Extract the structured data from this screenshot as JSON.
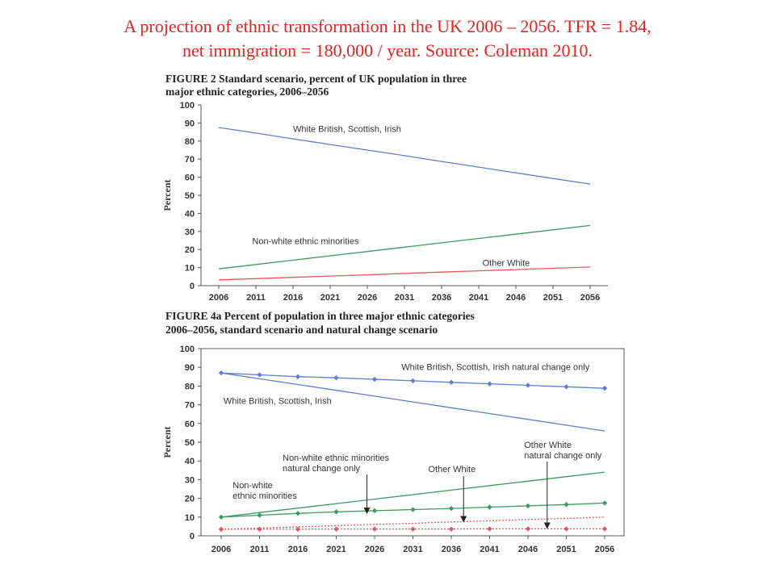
{
  "slide_title": {
    "line1": "A projection of ethnic transformation in the UK 2006 – 2056. TFR = 1.84,",
    "line2": "net immigration = 180,000 / year. Source: Coleman 2010."
  },
  "colors": {
    "title": "#e3231d",
    "white_british": "#5b7fd1",
    "nonwhite": "#3c9a5f",
    "other_white": "#e8575a",
    "axis": "#555555"
  },
  "chart_data": [
    {
      "type": "line",
      "title_line1": "FIGURE 2   Standard scenario, percent of UK population in three",
      "title_line2": "major ethnic categories, 2006–2056",
      "ylabel": "Percent",
      "ylim": [
        0,
        100
      ],
      "yticks": [
        0,
        10,
        20,
        30,
        40,
        50,
        60,
        70,
        80,
        90,
        100
      ],
      "x": [
        2006,
        2011,
        2016,
        2021,
        2026,
        2031,
        2036,
        2041,
        2046,
        2051,
        2056
      ],
      "grid": false,
      "series": [
        {
          "name": "White British, Scottish, Irish",
          "key": "white_british",
          "values": [
            87.5,
            84.4,
            81.2,
            78.1,
            75.0,
            71.9,
            68.7,
            65.6,
            62.4,
            59.3,
            56.2
          ],
          "markers": false,
          "dash": false
        },
        {
          "name": "Non-white ethnic minorities",
          "key": "nonwhite",
          "values": [
            9.3,
            11.7,
            14.1,
            16.5,
            18.9,
            21.3,
            23.7,
            26.1,
            28.5,
            30.9,
            33.3
          ],
          "markers": false,
          "dash": false
        },
        {
          "name": "Other White",
          "key": "other_white",
          "values": [
            3.2,
            3.9,
            4.6,
            5.3,
            6.0,
            6.8,
            7.5,
            8.2,
            8.9,
            9.6,
            10.3
          ],
          "markers": false,
          "dash": false
        }
      ],
      "annotations": [
        {
          "text": "White British, Scottish, Irish",
          "x": 2016.0,
          "y": 85.0,
          "arrow": false
        },
        {
          "text": "Non-white ethnic minorities",
          "x": 2010.5,
          "y": 23.0,
          "arrow": false
        },
        {
          "text": "Other White",
          "x": 2041.5,
          "y": 11.0,
          "arrow": false
        }
      ]
    },
    {
      "type": "line",
      "title_line1": "FIGURE 4a   Percent of population in three major ethnic categories",
      "title_line2": "2006–2056, standard scenario and natural change scenario",
      "ylabel": "Percent",
      "ylim": [
        0,
        100
      ],
      "yticks": [
        0,
        10,
        20,
        30,
        40,
        50,
        60,
        70,
        80,
        90,
        100
      ],
      "x": [
        2006,
        2011,
        2016,
        2021,
        2026,
        2031,
        2036,
        2041,
        2046,
        2051,
        2056
      ],
      "grid": false,
      "series": [
        {
          "name": "White British, Scottish, Irish",
          "key": "white_british",
          "values": [
            87.0,
            83.9,
            80.8,
            77.7,
            74.6,
            71.5,
            68.4,
            65.3,
            62.2,
            59.1,
            56.0
          ],
          "markers": false,
          "dash": false
        },
        {
          "name": "White British, Scottish, Irish natural change only",
          "key": "white_british",
          "values": [
            87.0,
            86.0,
            85.0,
            84.4,
            83.6,
            82.8,
            82.0,
            81.2,
            80.4,
            79.6,
            78.8
          ],
          "markers": true,
          "dash": false
        },
        {
          "name": "Non-white ethnic minorities",
          "key": "nonwhite",
          "values": [
            10.0,
            12.4,
            14.8,
            17.2,
            19.6,
            22.0,
            24.4,
            26.8,
            29.2,
            31.6,
            34.0
          ],
          "markers": false,
          "dash": false
        },
        {
          "name": "Non-white ethnic minorities natural change only",
          "key": "nonwhite",
          "values": [
            10.0,
            11.0,
            12.0,
            12.8,
            13.4,
            14.0,
            14.6,
            15.3,
            16.0,
            16.7,
            17.5
          ],
          "markers": true,
          "dash": false
        },
        {
          "name": "Other White",
          "key": "other_white",
          "values": [
            3.5,
            4.1,
            4.8,
            5.4,
            6.1,
            6.7,
            7.4,
            8.0,
            8.7,
            9.3,
            10.0
          ],
          "markers": false,
          "dash": true
        },
        {
          "name": "Other White natural change only",
          "key": "other_white",
          "values": [
            3.5,
            3.5,
            3.5,
            3.6,
            3.6,
            3.6,
            3.6,
            3.7,
            3.7,
            3.7,
            3.7
          ],
          "markers": true,
          "dash": true
        }
      ],
      "annotations": [
        {
          "text": "White British, Scottish, Irish natural change only",
          "x": 2029.5,
          "y": 88.5,
          "arrow": false
        },
        {
          "text": "White British, Scottish, Irish",
          "x": 2006.3,
          "y": 70.5,
          "arrow": false
        },
        {
          "text": "Non-white ethnic minorities",
          "line2": "natural change only",
          "x": 2014.0,
          "y": 40.0,
          "arrow": true,
          "arrow_to": [
            2025.0,
            12.5
          ]
        },
        {
          "text": "Other White",
          "x": 2033.0,
          "y": 34.0,
          "arrow": true,
          "arrow_to": [
            2037.6,
            8.0
          ]
        },
        {
          "text": "Non-white",
          "line2": "ethnic minorities",
          "x": 2007.5,
          "y": 25.5,
          "arrow": false
        },
        {
          "text": "Other White",
          "line2": "natural change only",
          "x": 2045.5,
          "y": 47.0,
          "arrow": true,
          "arrow_to": [
            2048.5,
            4.5
          ]
        }
      ]
    }
  ]
}
